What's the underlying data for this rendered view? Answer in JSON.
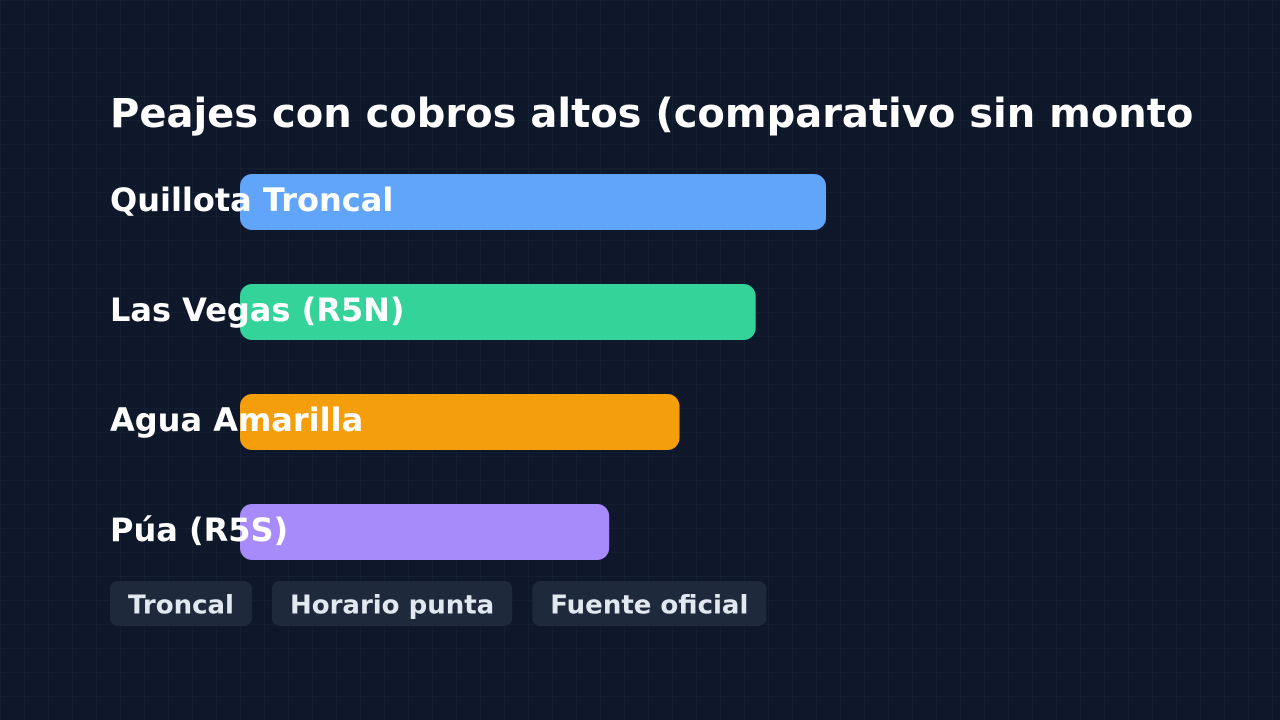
{
  "chart_data": {
    "type": "bar",
    "orientation": "horizontal",
    "title": "Peajes con cobros altos (comparativo sin monto",
    "categories": [
      "Quillota Troncal",
      "Las Vegas (R5N)",
      "Agua Amarilla",
      "Púa (R5S)"
    ],
    "values": [
      100,
      88,
      75,
      63
    ],
    "colors": [
      "#60a5fa",
      "#34d399",
      "#f59e0b",
      "#a78bfa"
    ],
    "tags": [
      "Troncal",
      "Horario punta",
      "Fuente oficial"
    ]
  }
}
